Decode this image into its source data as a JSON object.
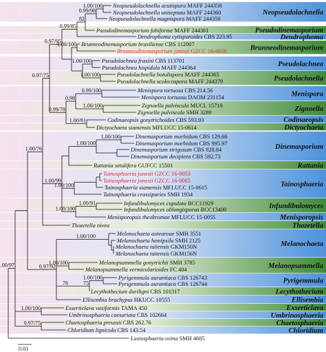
{
  "taxa": [
    {
      "name": "Neopseudolachnella acutispora",
      "strain": "MAFF 244358"
    },
    {
      "name": "Neopseudolachnella uniseptata",
      "strain": "MAFF 244360"
    },
    {
      "name": "Neopseudolachnella magnispora",
      "strain": "MAFF 244359"
    },
    {
      "name": "Pseudodinemasporium fabiforme",
      "strain": "MAFF 244361"
    },
    {
      "name": "Dendrophoma cytisporoides",
      "strain": "CBS 223.95"
    },
    {
      "name": "Brunneodinemasporium brasiliense",
      "strain": "CBS 112007"
    },
    {
      "name": "Brunneodinemasporium jonesii",
      "strain": "GZCC 16-0050",
      "color": "#e3262e"
    },
    {
      "name": "Pseudolachnea fraxini",
      "strain": "CBS 113701"
    },
    {
      "name": "Pseudolachnea hispidula",
      "strain": "MAFF 244364"
    },
    {
      "name": "Pseudolachnella botulispora",
      "strain": "MAFF 244365"
    },
    {
      "name": "Pseudolachnella scolecospora",
      "strain": "MAFF 244379"
    },
    {
      "name": "Menispora tortuosa",
      "strain": "CBS 214.56"
    },
    {
      "name": "Menispora tortuosa",
      "strain": "DAOM 231154"
    },
    {
      "name": "Zignoella pulviscula",
      "strain": "MUCL 15710"
    },
    {
      "name": "Zignoella pulviscula",
      "strain": "SMH 3289"
    },
    {
      "name": "Codinaeopsis gonytrichoides",
      "strain": "CBS 593.93"
    },
    {
      "name": "Dictyochaeta siamensis",
      "strain": "MFLUCC 15-0614"
    },
    {
      "name": "Dinemasporium morbidum",
      "strain": "CBS 129.66"
    },
    {
      "name": "Dinemasporium morbidum",
      "strain": "CBS 995.97"
    },
    {
      "name": "Dinemasporium strigosum",
      "strain": "CBS 828.84"
    },
    {
      "name": "Dinemasporium decipiens",
      "strain": "CBS 592.73"
    },
    {
      "name": "Rattania setulifera",
      "strain": "GUFCC 15501"
    },
    {
      "name": "Tainosphaeria jonesii",
      "strain": "GZCC 16-0053",
      "color": "#e3262e"
    },
    {
      "name": "Tainosphaeria jonesii",
      "strain": "GZCC 16-0065",
      "color": "#e3262e"
    },
    {
      "name": "Tainosphaeria siamensis",
      "strain": "MFLUCC 15-0615"
    },
    {
      "name": "Tainosphaeria crassiparies",
      "strain": "SMH 1934"
    },
    {
      "name": "Infundibulomyces cupulata",
      "strain": "BCC11929"
    },
    {
      "name": "Infundibulomyces oblongisporus",
      "strain": "BCC13400"
    },
    {
      "name": "Menisporopsis theobromae",
      "strain": "MFLUCC 15-0055"
    },
    {
      "name": "Thozetella nivea"
    },
    {
      "name": "Melanochaeta aotearoae",
      "strain": "SMH 3551"
    },
    {
      "name": "Melanochaeta hemipsila",
      "strain": "SMH 2125"
    },
    {
      "name": "Melanochaeta taitensis",
      "strain": "GKM150N"
    },
    {
      "name": "Melanochaeta taitensis",
      "strain": "GKM156N"
    },
    {
      "name": "Melanopsammella gonytrichii",
      "strain": "SMH 3785"
    },
    {
      "name": "Melanopsammella vermicularioides",
      "strain": "FC 404"
    },
    {
      "name": "Pyrigemmula aurantiaca",
      "strain": "CBS 126743"
    },
    {
      "name": "Pyrigemmula aurantiaca",
      "strain": "CBS 126744"
    },
    {
      "name": "Lecythothecium duriligni",
      "strain": "CBS 101317"
    },
    {
      "name": "Ellisembia brachypus",
      "strain": "HKUCC 10555"
    },
    {
      "name": "Exserticlava vasiformis",
      "strain": "TAMA 450"
    },
    {
      "name": "Umbrinosphaeria caesariata",
      "strain": "CBS 102664"
    },
    {
      "name": "Chaetosphaeria preussii",
      "strain": "CBS 262.76"
    },
    {
      "name": "Chloridium lignicola",
      "strain": "CBS 143.54"
    },
    {
      "name": "Lasiosphaeria ovina",
      "strain": "SMH 4605"
    }
  ],
  "clades": [
    "Neopseudolachnella",
    "Pseudodinemasporium",
    "Dendrophoma",
    "Brunneodinemasporium",
    "Pseudolachnea",
    "Pseudolachnella",
    "Menispora",
    "Zignoella",
    "Codinaeopsis",
    "Dictyochaeta",
    "Dinemasporium",
    "Rattania",
    "Tainosphaeria",
    "Infundibulomyces",
    "Menisporopsis",
    "Thozetella",
    "Melanochaeta",
    "Melanopsammella",
    "Pyrigemmula",
    "Lecythothecium",
    "Ellisembia",
    "Exserticlava",
    "Umbrinosphaeria",
    "Chaetosphaeria",
    "Chloridium"
  ],
  "supports": [
    "0.99/98",
    "1.00/100",
    "82",
    "0.99/85",
    "1.00/100",
    "0.97/95",
    "1.00/100",
    "1.00/100",
    "0.97/75",
    "0.99/100",
    "0.98",
    "1.00/100",
    "0.99/78",
    "1.00/81",
    "1.00/99",
    "1.00/100",
    "1.00/100",
    "1.00/100",
    "1.00/76",
    "1.00/91",
    "1.00/100",
    "1.00/97",
    "1.00/100",
    "0.97/92",
    "1.00/100",
    "76",
    "75",
    "1.00/100",
    "1.00/100",
    "0.97/75"
  ],
  "scale_bar": "0.03"
}
